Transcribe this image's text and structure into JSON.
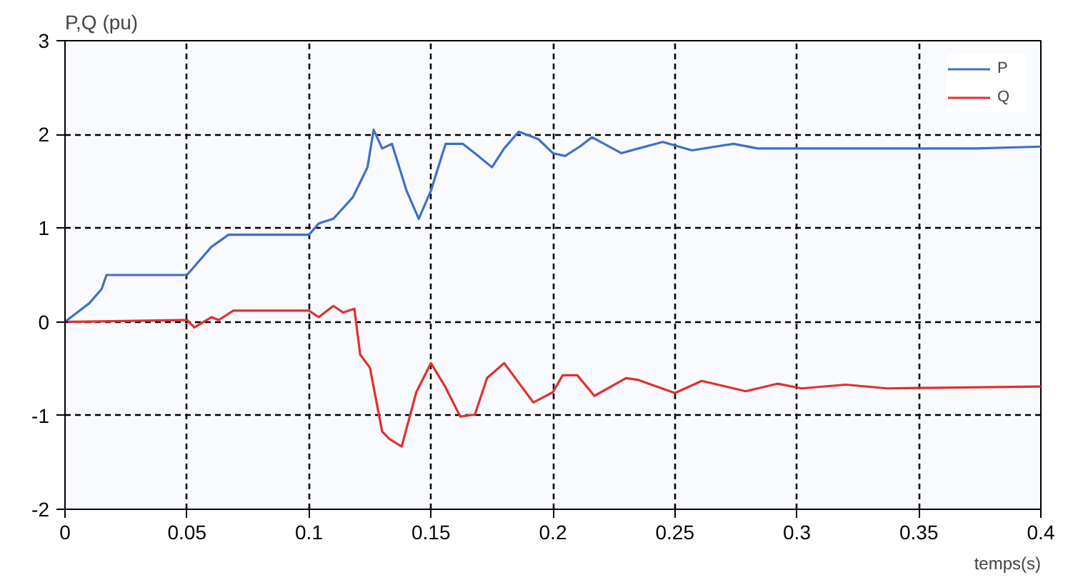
{
  "chart_data": {
    "type": "line",
    "xlabel": "temps(s)",
    "ylabel": "P,Q (pu)",
    "xlim": [
      0,
      0.4
    ],
    "ylim": [
      -2,
      3
    ],
    "xticks": [
      0,
      0.05,
      0.1,
      0.15,
      0.2,
      0.25,
      0.3,
      0.35,
      0.4
    ],
    "yticks": [
      -2,
      -1,
      0,
      1,
      2,
      3
    ],
    "grid": true,
    "legend": "top right",
    "line_style": "solid",
    "series": [
      {
        "name": "P",
        "color": "#3f6fc6",
        "x": [
          0,
          0.005,
          0.01,
          0.015,
          0.017,
          0.05,
          0.055,
          0.06,
          0.067,
          0.1,
          0.104,
          0.11,
          0.118,
          0.124,
          0.1265,
          0.13,
          0.134,
          0.14,
          0.145,
          0.15,
          0.156,
          0.163,
          0.168,
          0.175,
          0.18,
          0.186,
          0.194,
          0.2,
          0.205,
          0.211,
          0.216,
          0.221,
          0.228,
          0.235,
          0.245,
          0.257,
          0.274,
          0.284,
          0.312,
          0.347,
          0.373,
          0.4
        ],
        "values": [
          0,
          0.1,
          0.2,
          0.35,
          0.5,
          0.5,
          0.65,
          0.8,
          0.93,
          0.93,
          1.05,
          1.1,
          1.33,
          1.65,
          2.05,
          1.85,
          1.9,
          1.4,
          1.1,
          1.4,
          1.9,
          1.9,
          1.8,
          1.65,
          1.85,
          2.03,
          1.95,
          1.8,
          1.77,
          1.87,
          1.97,
          1.9,
          1.8,
          1.85,
          1.92,
          1.83,
          1.9,
          1.85,
          1.85,
          1.85,
          1.85,
          1.87
        ]
      },
      {
        "name": "Q",
        "color": "#e03030",
        "x": [
          0,
          0.05,
          0.053,
          0.06,
          0.063,
          0.069,
          0.1,
          0.104,
          0.11,
          0.114,
          0.1186,
          0.121,
          0.125,
          0.13,
          0.133,
          0.138,
          0.144,
          0.15,
          0.156,
          0.162,
          0.168,
          0.173,
          0.18,
          0.186,
          0.192,
          0.2,
          0.204,
          0.21,
          0.217,
          0.23,
          0.235,
          0.25,
          0.261,
          0.279,
          0.292,
          0.302,
          0.32,
          0.337,
          0.4
        ],
        "values": [
          0,
          0.02,
          -0.06,
          0.05,
          0.02,
          0.12,
          0.12,
          0.05,
          0.17,
          0.1,
          0.14,
          -0.35,
          -0.49,
          -1.17,
          -1.25,
          -1.33,
          -0.75,
          -0.44,
          -0.7,
          -1.01,
          -0.99,
          -0.6,
          -0.44,
          -0.65,
          -0.86,
          -0.75,
          -0.57,
          -0.57,
          -0.79,
          -0.6,
          -0.62,
          -0.76,
          -0.63,
          -0.74,
          -0.66,
          -0.71,
          -0.67,
          -0.71,
          -0.69
        ]
      }
    ]
  }
}
